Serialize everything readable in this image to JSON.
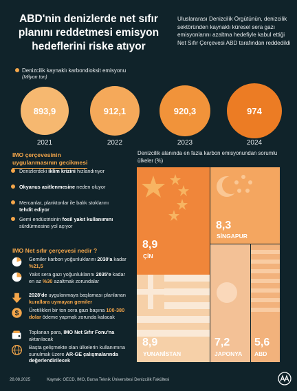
{
  "title": "ABD'nin denizlerde net sıfır planını reddetmesi emisyon hedeflerini riske atıyor",
  "intro": "Uluslararası Denizcilik Örgütünün, denizcilik sektöründen kaynaklı küresel sera gazı emisyonlarını azaltma hedefiyle kabul ettiği Net Sıfır Çerçevesi ABD tarafından reddedildi",
  "emissions": {
    "label": "Denizcilik kaynaklı karbondioksit emisyonu",
    "unit": "(Milyon ton)",
    "values": [
      {
        "year": "2021",
        "value": "893,9",
        "color": "#f6b870"
      },
      {
        "year": "2022",
        "value": "912,1",
        "color": "#f5a95a"
      },
      {
        "year": "2023",
        "value": "920,3",
        "color": "#f1933a"
      },
      {
        "year": "2024",
        "value": "974",
        "color": "#ec7c24"
      }
    ]
  },
  "delay": {
    "title_line1": "IMO çerçevesinin",
    "title_line2": "uygulanmasının gecikmesi",
    "items": [
      {
        "pre": "Denizlerdeki ",
        "bold": "iklim krizini",
        "post": " hızlandırıyor"
      },
      {
        "pre": "",
        "bold": "Okyanus asitlenmesine",
        "post": " neden oluyor"
      },
      {
        "pre": "Mercanlar, planktonlar ile balık stoklarını ",
        "bold": "tehdit ediyor",
        "post": ""
      },
      {
        "pre": "Gemi endüstrisinin ",
        "bold": "fosil yakıt kullanımını",
        "post": " sürdürmesine yol açıyor"
      }
    ]
  },
  "framework": {
    "title": "IMO Net sıfır çerçevesi nedir ?",
    "items": [
      {
        "icon": "pie-chart-icon",
        "t1": "Gemiler karbon yoğunluklarını ",
        "t2": "2030'a",
        "t3": " kadar ",
        "t4": "%21,5",
        "t5": ""
      },
      {
        "icon": "pie-chart-icon",
        "t1": "Yakıt sera gazı yoğunluklarını ",
        "t2": "2035'e",
        "t3": " kadar en az ",
        "t4": "%30",
        "t5": " azaltmak zorundalar"
      },
      {
        "icon": "down-arrow-icon",
        "t1": "",
        "t2": "2028'de",
        "t3": " uygulanmaya başlaması planlanan ",
        "t4": "kurallara uymayan gemiler",
        "t5": ""
      },
      {
        "icon": "dollar-coin-icon",
        "t1": "Üretilikleri bir ton sera gazı başına ",
        "t2": "",
        "t3": "",
        "t4": "100-380 dolar",
        "t5": " ödeme yapmak zorunda kalacak"
      },
      {
        "icon": "wallet-icon",
        "t1": "Toplanan para, ",
        "t2": "IMO Net Sıfır Fonu'na",
        "t3": " aktarılacak",
        "t4": "",
        "t5": ""
      },
      {
        "icon": "globe-icon",
        "t1": "Başta gelişmekte olan ülkelerin kullanımına sunulmak üzere ",
        "t2": "AR-GE çalışmalarında değerlendirilecek",
        "t3": "",
        "t4": "",
        "t5": ""
      }
    ]
  },
  "treemap": {
    "title": "Denizcilik alanında en fazla karbon emisyonundan sorumlu ülkeler (%)",
    "countries": [
      {
        "name": "ÇİN",
        "value": "8,9",
        "flag": "china-flag"
      },
      {
        "name": "SİNGAPUR",
        "value": "8,3",
        "flag": "singapore-flag"
      },
      {
        "name": "YUNANİSTAN",
        "value": "8,9",
        "flag": "greece-flag"
      },
      {
        "name": "JAPONYA",
        "value": "7,2",
        "flag": "japan-flag"
      },
      {
        "name": "ABD",
        "value": "5,6",
        "flag": "usa-flag"
      }
    ]
  },
  "footer": {
    "date": "28.08.2025",
    "source": "Kaynak: OECD, IMO, Bursa Teknik Üniversitesi Denizcilik Fakültesi"
  },
  "colors": {
    "accent": "#f4a64a",
    "background": "#10232a"
  }
}
